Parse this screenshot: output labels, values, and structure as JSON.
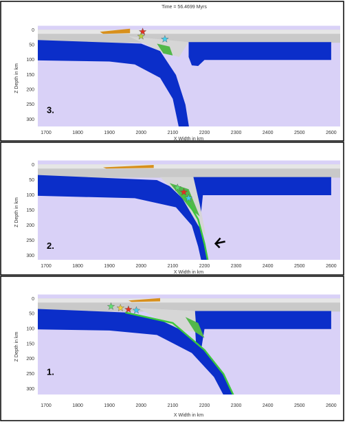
{
  "title": "Time = 56.4699 Myrs",
  "panels": [
    {
      "label": "3.",
      "xlabel": "X Width in km",
      "ylabel": "Z Depth in km",
      "xticks": [
        1700,
        1800,
        1900,
        2000,
        2100,
        2200,
        2300,
        2400,
        2500,
        2600
      ],
      "yticks": [
        0,
        50,
        100,
        150,
        200,
        250,
        300
      ]
    },
    {
      "label": "2.",
      "xlabel": "X Width in km",
      "ylabel": "Z Depth in km",
      "xticks": [
        1700,
        1800,
        1900,
        2000,
        2100,
        2200,
        2300,
        2400,
        2500,
        2600
      ],
      "yticks": [
        0,
        50,
        100,
        150,
        200,
        250,
        300
      ]
    },
    {
      "label": "1.",
      "xlabel": "X Width in km",
      "ylabel": "Z Depth in km",
      "xticks": [
        1700,
        1800,
        1900,
        2000,
        2100,
        2200,
        2300,
        2400,
        2500,
        2600
      ],
      "yticks": [
        0,
        50,
        100,
        150,
        200,
        250,
        300
      ]
    }
  ]
}
